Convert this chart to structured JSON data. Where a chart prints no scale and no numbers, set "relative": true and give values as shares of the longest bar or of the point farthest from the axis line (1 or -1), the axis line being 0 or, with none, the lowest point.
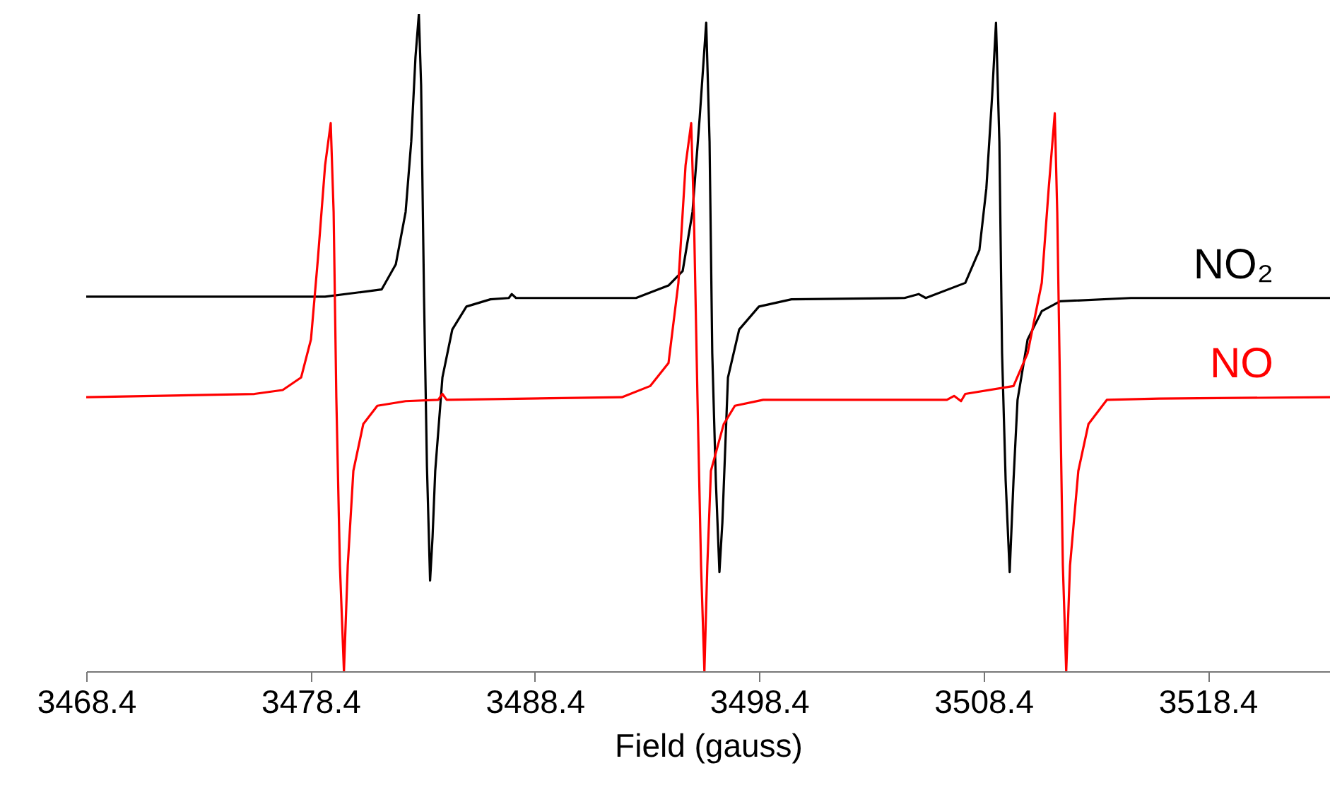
{
  "chart_data": {
    "type": "line",
    "xlabel": "Field (gauss)",
    "relative": true,
    "grid": false,
    "tick_labels": "x",
    "marker": "none",
    "line_style": "solid",
    "xlim": [
      3468.4,
      3523.85
    ],
    "xticks": [
      3468.4,
      3478.4,
      3488.4,
      3498.4,
      3508.4,
      3518.4
    ],
    "series": [
      {
        "name": "NO₂",
        "color": "#000000",
        "x": [
          3468.4,
          3479.05,
          3481.57,
          3482.2,
          3482.64,
          3482.89,
          3483.08,
          3483.23,
          3483.33,
          3483.46,
          3483.59,
          3483.73,
          3483.84,
          3483.96,
          3484.28,
          3484.72,
          3485.35,
          3486.42,
          3487.24,
          3487.37,
          3487.56,
          3492.91,
          3494.36,
          3494.99,
          3495.43,
          3495.75,
          3496.04,
          3496.19,
          3496.31,
          3496.47,
          3496.63,
          3496.76,
          3497.01,
          3497.51,
          3498.39,
          3499.84,
          3504.88,
          3505.51,
          3505.83,
          3507.59,
          3508.22,
          3508.53,
          3508.79,
          3508.96,
          3509.11,
          3509.23,
          3509.39,
          3509.57,
          3509.74,
          3509.92,
          3510.37,
          3511.0,
          3511.82,
          3514.97,
          3523.85
        ],
        "values": [
          0.57,
          0.57,
          0.581,
          0.619,
          0.699,
          0.806,
          0.935,
          1.0,
          0.892,
          0.57,
          0.312,
          0.138,
          0.204,
          0.305,
          0.447,
          0.52,
          0.555,
          0.566,
          0.568,
          0.574,
          0.568,
          0.568,
          0.587,
          0.609,
          0.699,
          0.843,
          0.987,
          0.806,
          0.484,
          0.29,
          0.151,
          0.226,
          0.447,
          0.52,
          0.555,
          0.566,
          0.568,
          0.574,
          0.568,
          0.591,
          0.641,
          0.735,
          0.877,
          0.987,
          0.806,
          0.484,
          0.29,
          0.151,
          0.29,
          0.413,
          0.505,
          0.548,
          0.563,
          0.568,
          0.568
        ]
      },
      {
        "name": "NO",
        "color": "#ff0000",
        "x": [
          3468.4,
          3475.9,
          3477.16,
          3477.98,
          3478.42,
          3478.73,
          3479.05,
          3479.3,
          3479.43,
          3479.55,
          3479.71,
          3479.89,
          3480.06,
          3480.31,
          3480.75,
          3481.38,
          3482.64,
          3484.09,
          3484.28,
          3484.47,
          3492.28,
          3493.54,
          3494.36,
          3494.8,
          3495.12,
          3495.37,
          3495.49,
          3495.65,
          3495.81,
          3495.96,
          3496.09,
          3496.25,
          3496.82,
          3497.32,
          3498.58,
          3506.77,
          3507.09,
          3507.4,
          3507.59,
          3509.74,
          3510.37,
          3511.0,
          3511.31,
          3511.58,
          3511.69,
          3511.82,
          3511.94,
          3512.09,
          3512.26,
          3512.63,
          3513.08,
          3513.9,
          3516.23,
          3523.85
        ],
        "values": [
          0.417,
          0.422,
          0.428,
          0.447,
          0.505,
          0.628,
          0.77,
          0.834,
          0.699,
          0.417,
          0.161,
          0.0,
          0.161,
          0.305,
          0.376,
          0.404,
          0.411,
          0.413,
          0.422,
          0.413,
          0.417,
          0.434,
          0.469,
          0.591,
          0.77,
          0.834,
          0.699,
          0.417,
          0.161,
          0.0,
          0.161,
          0.305,
          0.376,
          0.404,
          0.413,
          0.413,
          0.419,
          0.411,
          0.422,
          0.434,
          0.484,
          0.591,
          0.735,
          0.849,
          0.699,
          0.417,
          0.161,
          0.0,
          0.161,
          0.305,
          0.376,
          0.413,
          0.415,
          0.417
        ]
      }
    ]
  }
}
